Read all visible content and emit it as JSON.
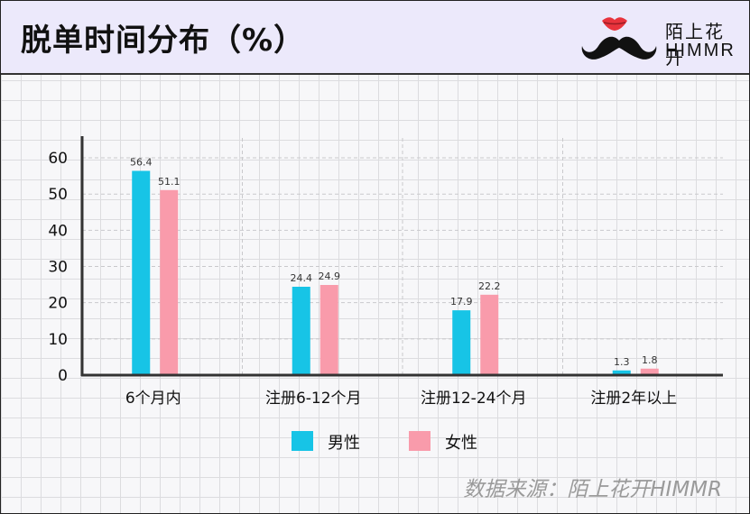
{
  "header": {
    "title": "脱单时间分布（%）",
    "logo": {
      "line1": "陌上花开",
      "line2": "HIMMR"
    }
  },
  "source": "数据来源：陌上花开HIMMR",
  "colors": {
    "male": "#17c4e6",
    "female": "#f99bab",
    "lips": "#e8333c",
    "mustache": "#111111"
  },
  "chart_data": {
    "type": "bar",
    "title": "脱单时间分布（%）",
    "categories": [
      "6个月内",
      "注册6-12个月",
      "注册12-24个月",
      "注册2年以上"
    ],
    "series": [
      {
        "name": "男性",
        "values": [
          56.4,
          24.4,
          17.9,
          1.3
        ]
      },
      {
        "name": "女性",
        "values": [
          51.1,
          24.9,
          22.2,
          1.8
        ]
      }
    ],
    "yticks": [
      0,
      10,
      20,
      30,
      40,
      50,
      60
    ],
    "ylim": [
      0,
      62
    ],
    "grid": true,
    "legend_position": "bottom-center",
    "data_labels": true
  }
}
